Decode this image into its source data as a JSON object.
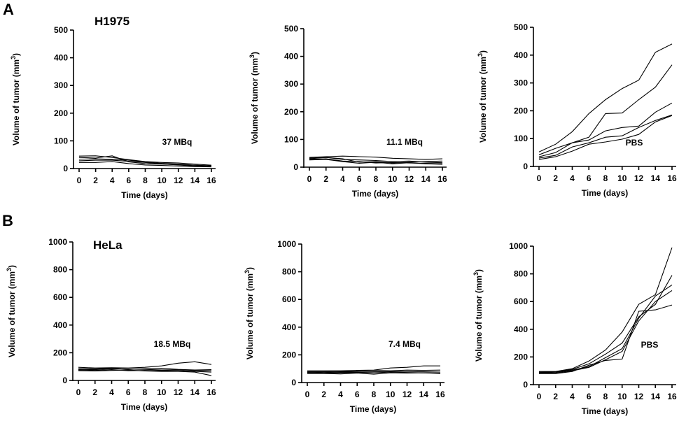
{
  "chart_data": [
    {
      "type": "line",
      "panel_letter": "A",
      "cell_label": "H1975",
      "dose_label": "37 MBq",
      "xlabel": "Time (days)",
      "ylabel": "Volume of tumor (mm³)",
      "ylim": [
        0,
        500
      ],
      "yticks": [
        0,
        100,
        200,
        300,
        400,
        500
      ],
      "x": [
        0,
        2,
        4,
        6,
        8,
        10,
        12,
        14,
        16
      ],
      "series": [
        {
          "values": [
            45,
            46,
            40,
            32,
            25,
            22,
            20,
            16,
            12
          ]
        },
        {
          "values": [
            40,
            38,
            46,
            24,
            18,
            16,
            14,
            12,
            10
          ]
        },
        {
          "values": [
            34,
            35,
            33,
            30,
            24,
            19,
            16,
            12,
            9
          ]
        },
        {
          "values": [
            28,
            30,
            30,
            26,
            22,
            17,
            13,
            9,
            7
          ]
        },
        {
          "values": [
            22,
            22,
            25,
            18,
            13,
            11,
            9,
            7,
            6
          ]
        }
      ]
    },
    {
      "type": "line",
      "panel_letter": "",
      "cell_label": "",
      "dose_label": "11.1 MBq",
      "xlabel": "Time (days)",
      "ylabel": "Volume of tumor (mm³)",
      "ylim": [
        0,
        500
      ],
      "yticks": [
        0,
        100,
        200,
        300,
        400,
        500
      ],
      "x": [
        0,
        2,
        4,
        6,
        8,
        10,
        12,
        14,
        16
      ],
      "series": [
        {
          "values": [
            35,
            38,
            40,
            38,
            36,
            32,
            30,
            28,
            30
          ]
        },
        {
          "values": [
            33,
            35,
            28,
            26,
            24,
            20,
            22,
            18,
            16
          ]
        },
        {
          "values": [
            30,
            35,
            30,
            18,
            20,
            15,
            18,
            20,
            22
          ]
        },
        {
          "values": [
            28,
            30,
            22,
            20,
            15,
            17,
            15,
            14,
            12
          ]
        },
        {
          "values": [
            26,
            28,
            20,
            14,
            18,
            12,
            16,
            12,
            10
          ]
        }
      ]
    },
    {
      "type": "line",
      "panel_letter": "",
      "cell_label": "",
      "dose_label": "PBS",
      "xlabel": "Time (days)",
      "ylabel": "Volume of tumor (mm³)",
      "ylim": [
        0,
        500
      ],
      "yticks": [
        0,
        100,
        200,
        300,
        400,
        500
      ],
      "x": [
        0,
        2,
        4,
        6,
        8,
        10,
        12,
        14,
        16
      ],
      "series": [
        {
          "values": [
            52,
            80,
            125,
            190,
            240,
            280,
            310,
            410,
            440
          ]
        },
        {
          "values": [
            42,
            65,
            85,
            105,
            190,
            192,
            240,
            285,
            365
          ]
        },
        {
          "values": [
            35,
            50,
            85,
            95,
            128,
            140,
            145,
            195,
            228
          ]
        },
        {
          "values": [
            30,
            40,
            70,
            85,
            105,
            110,
            140,
            165,
            185
          ]
        },
        {
          "values": [
            25,
            35,
            55,
            80,
            88,
            98,
            115,
            160,
            183
          ]
        }
      ]
    },
    {
      "type": "line",
      "panel_letter": "B",
      "cell_label": "HeLa",
      "dose_label": "18.5 MBq",
      "xlabel": "Time (days)",
      "ylabel": "Volume of tumor (mm³)",
      "ylim": [
        0,
        1000
      ],
      "yticks": [
        0,
        200,
        400,
        600,
        800,
        1000
      ],
      "x": [
        0,
        2,
        4,
        6,
        8,
        10,
        12,
        14,
        16
      ],
      "series": [
        {
          "values": [
            95,
            90,
            92,
            90,
            95,
            105,
            125,
            135,
            115
          ]
        },
        {
          "values": [
            85,
            85,
            88,
            80,
            85,
            88,
            80,
            75,
            78
          ]
        },
        {
          "values": [
            80,
            78,
            85,
            82,
            80,
            75,
            78,
            72,
            70
          ]
        },
        {
          "values": [
            75,
            72,
            78,
            70,
            72,
            70,
            72,
            65,
            60
          ]
        },
        {
          "values": [
            70,
            68,
            72,
            75,
            68,
            65,
            65,
            60,
            35
          ]
        }
      ]
    },
    {
      "type": "line",
      "panel_letter": "",
      "cell_label": "",
      "dose_label": "7.4 MBq",
      "xlabel": "Time (days)",
      "ylabel": "Volume of tumor (mm³)",
      "ylim": [
        0,
        1000
      ],
      "yticks": [
        0,
        200,
        400,
        600,
        800,
        1000
      ],
      "x": [
        0,
        2,
        4,
        6,
        8,
        10,
        12,
        14,
        16
      ],
      "series": [
        {
          "values": [
            85,
            85,
            85,
            88,
            90,
            105,
            110,
            120,
            120
          ]
        },
        {
          "values": [
            78,
            78,
            80,
            82,
            88,
            85,
            90,
            88,
            90
          ]
        },
        {
          "values": [
            75,
            72,
            75,
            75,
            78,
            80,
            80,
            78,
            75
          ]
        },
        {
          "values": [
            70,
            68,
            70,
            72,
            70,
            75,
            72,
            70,
            68
          ]
        },
        {
          "values": [
            65,
            65,
            62,
            68,
            60,
            70,
            68,
            70,
            65
          ]
        }
      ]
    },
    {
      "type": "line",
      "panel_letter": "",
      "cell_label": "",
      "dose_label": "PBS",
      "xlabel": "Time (days)",
      "ylabel": "Volume of tumor (mm³)",
      "ylim": [
        0,
        1000
      ],
      "yticks": [
        0,
        200,
        400,
        600,
        800,
        1000
      ],
      "x": [
        0,
        2,
        4,
        6,
        8,
        10,
        12,
        14,
        16
      ],
      "series": [
        {
          "values": [
            95,
            95,
            115,
            170,
            250,
            380,
            580,
            650,
            990
          ]
        },
        {
          "values": [
            90,
            92,
            110,
            150,
            220,
            300,
            490,
            580,
            790
          ]
        },
        {
          "values": [
            85,
            90,
            105,
            130,
            195,
            260,
            480,
            640,
            720
          ]
        },
        {
          "values": [
            82,
            85,
            100,
            125,
            180,
            240,
            460,
            600,
            680
          ]
        },
        {
          "values": [
            80,
            80,
            95,
            140,
            175,
            185,
            530,
            540,
            575
          ]
        }
      ]
    }
  ]
}
